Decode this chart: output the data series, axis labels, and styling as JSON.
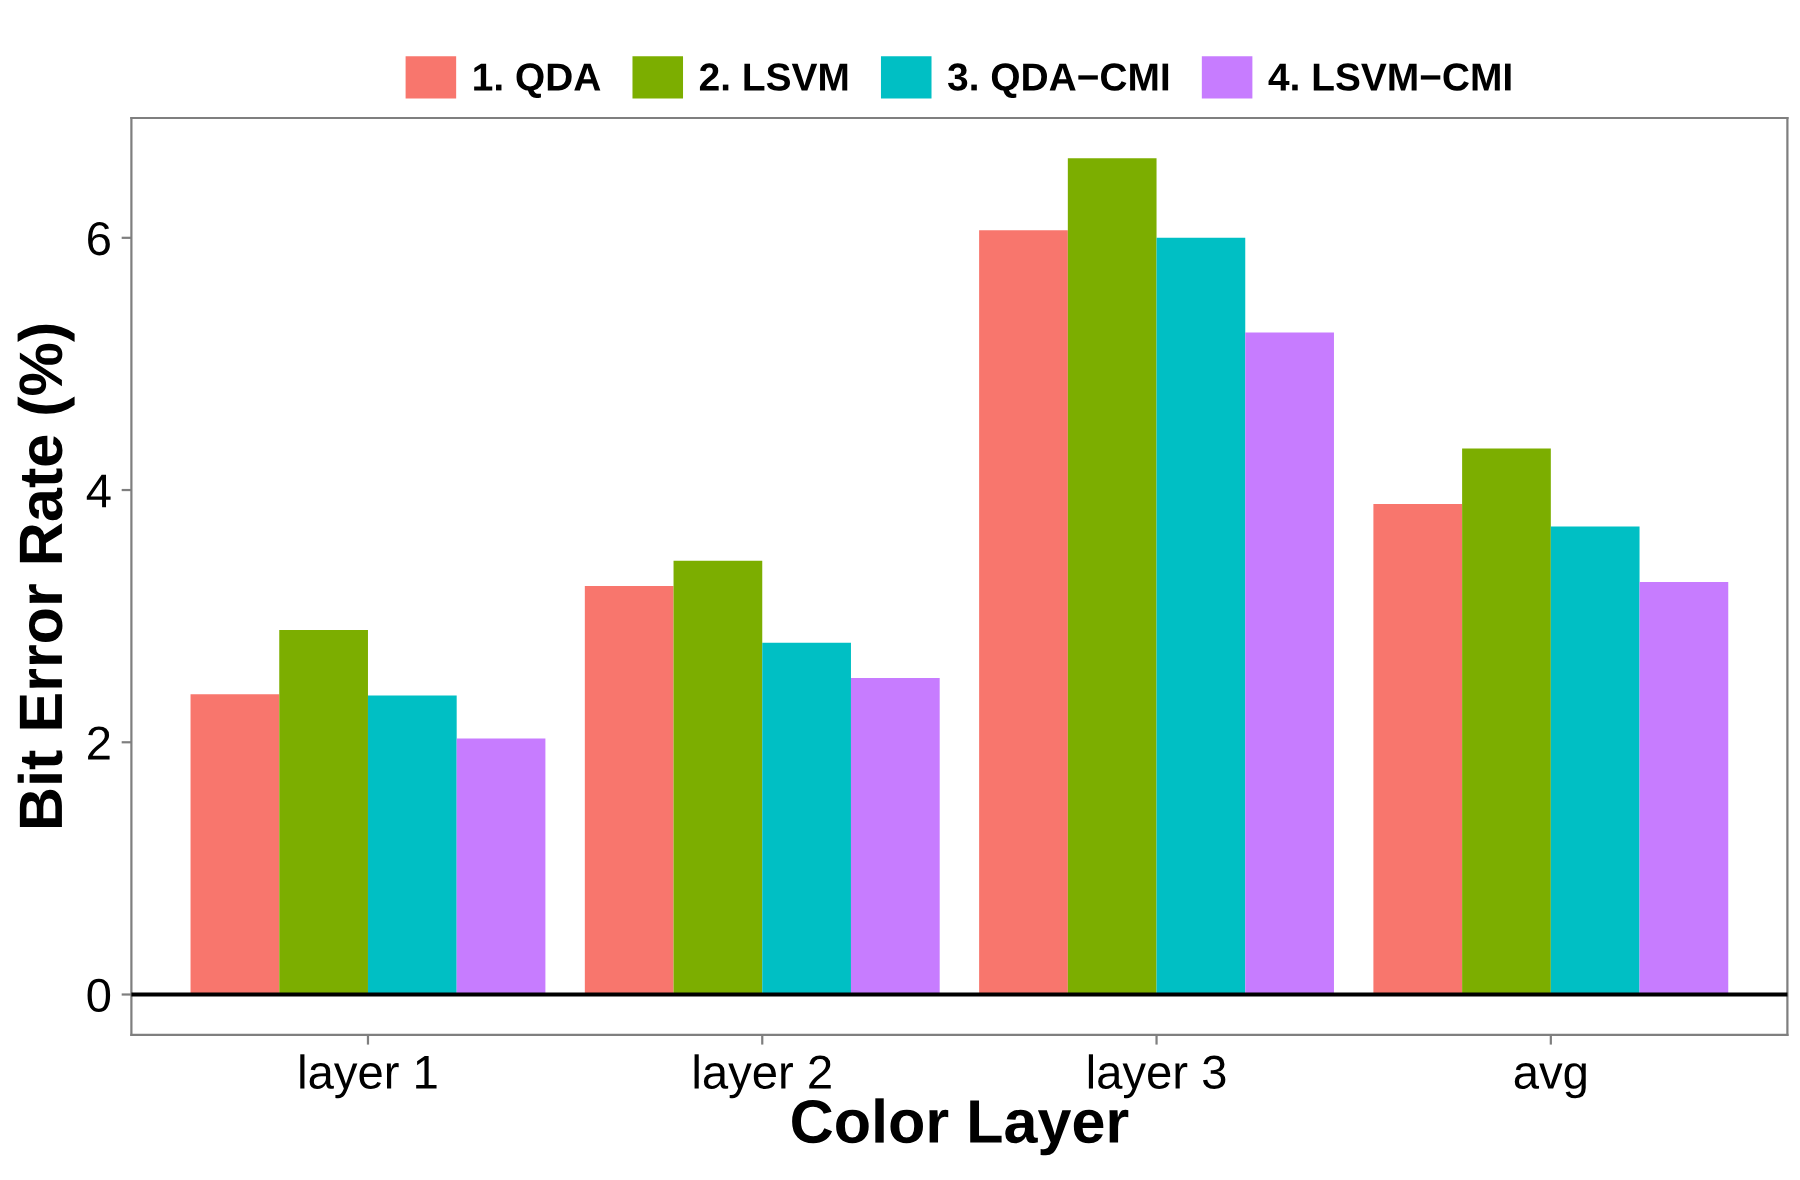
{
  "chart_data": {
    "type": "bar",
    "xlabel": "Color Layer",
    "ylabel": "Bit Error Rate (%)",
    "categories": [
      "layer 1",
      "layer 2",
      "layer 3",
      "avg"
    ],
    "series": [
      {
        "name": "1. QDA",
        "color": "#f8766d",
        "values": [
          2.38,
          3.24,
          6.06,
          3.89
        ]
      },
      {
        "name": "2. LSVM",
        "color": "#7cae00",
        "values": [
          2.89,
          3.44,
          6.63,
          4.33
        ]
      },
      {
        "name": "3. QDA−CMI",
        "color": "#00bfc4",
        "values": [
          2.37,
          2.79,
          6.0,
          3.71
        ]
      },
      {
        "name": "4. LSVM−CMI",
        "color": "#c77cff",
        "values": [
          2.03,
          2.51,
          5.25,
          3.27
        ]
      }
    ],
    "ylim": [
      -0.32,
      6.95
    ],
    "yticks": [
      0,
      2,
      4,
      6
    ],
    "grid": false,
    "legend": "top",
    "ref_lines": [
      {
        "axis": "y",
        "value": 0,
        "color": "#000000"
      }
    ]
  }
}
